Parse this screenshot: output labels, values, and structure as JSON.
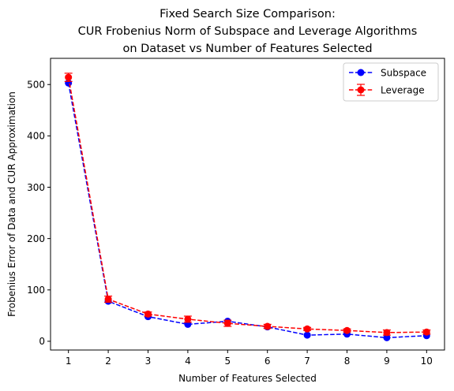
{
  "chart_data": {
    "type": "line",
    "title_lines": [
      "Fixed Search Size Comparison:",
      "CUR Frobenius Norm of Subspace and Leverage Algorithms",
      "on Dataset vs Number of Features Selected"
    ],
    "xlabel": "Number of Features Selected",
    "ylabel": "Frobenius Error of Data and CUR Approximation",
    "x": [
      1,
      2,
      3,
      4,
      5,
      6,
      7,
      8,
      9,
      10
    ],
    "xlim": [
      0.55,
      10.45
    ],
    "ylim": [
      -17,
      551
    ],
    "xticks": [
      1,
      2,
      3,
      4,
      5,
      6,
      7,
      8,
      9,
      10
    ],
    "yticks": [
      0,
      100,
      200,
      300,
      400,
      500
    ],
    "grid": false,
    "legend_position": "top-right",
    "series": [
      {
        "name": "Subspace",
        "color": "#0000ff",
        "values": [
          503,
          78,
          48,
          33,
          39,
          28,
          12,
          14,
          7,
          11
        ],
        "errors": null
      },
      {
        "name": "Leverage",
        "color": "#ff0000",
        "values": [
          514,
          82,
          53,
          43,
          35,
          29,
          24,
          21,
          17,
          18
        ],
        "errors": [
          8,
          6,
          4,
          6,
          6,
          4,
          3,
          3,
          5,
          4
        ]
      }
    ]
  }
}
